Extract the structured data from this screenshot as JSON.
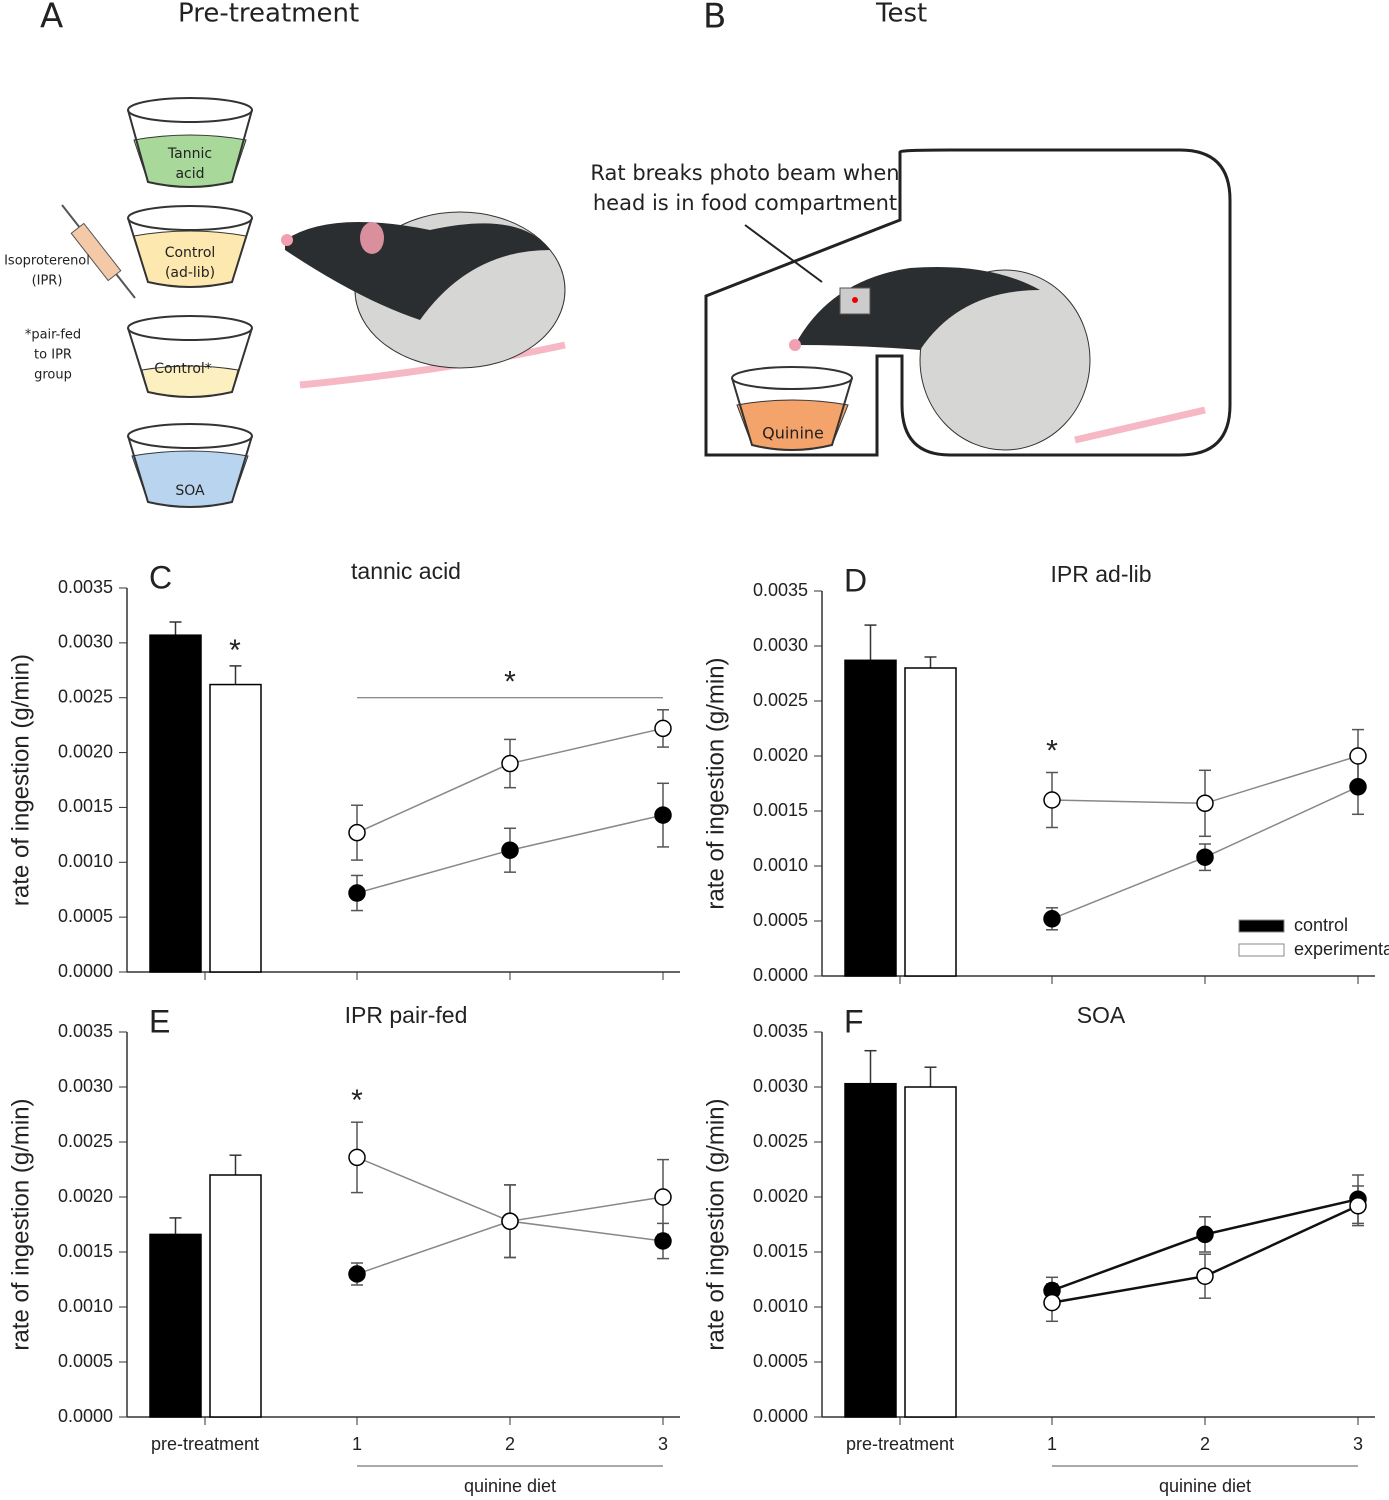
{
  "diagram": {
    "panel_a": {
      "letter": "A",
      "title": "Pre-treatment",
      "cups": [
        [
          "Tannic",
          "acid"
        ],
        [
          "Control",
          "(ad-lib)"
        ],
        [
          "Control*"
        ],
        [
          "SOA"
        ]
      ],
      "drug": [
        "Isoproterenol",
        "(IPR)"
      ],
      "note": [
        "*pair-fed",
        "to IPR",
        "group"
      ]
    },
    "panel_b": {
      "letter": "B",
      "title": "Test",
      "caption": [
        "Rat breaks photo beam when",
        "head is in food compartment"
      ],
      "cup": "Quinine"
    }
  },
  "chart_data": [
    {
      "type": "bar_line",
      "panel": "C",
      "title": "tannic acid",
      "ylabel": "rate of ingestion (g/min)",
      "ylim": [
        0,
        0.0035
      ],
      "yticks": [
        {
          "value": 0,
          "label": "0.0000"
        },
        {
          "value": 0.0005,
          "label": "0.0005"
        },
        {
          "value": 0.001,
          "label": "0.0010"
        },
        {
          "value": 0.0015,
          "label": "0.0015"
        },
        {
          "value": 0.002,
          "label": "0.0020"
        },
        {
          "value": 0.0025,
          "label": "0.0025"
        },
        {
          "value": 0.003,
          "label": "0.0030"
        },
        {
          "value": 0.0035,
          "label": "0.0035"
        }
      ],
      "x": [
        1,
        2,
        3
      ],
      "show_x_labels": false,
      "series": [
        {
          "color": "#000000",
          "bar": 0.00307,
          "bar_error": 0.00012,
          "values": [
            0.00072,
            0.00111,
            0.00143
          ],
          "errors": [
            0.00016,
            0.0002,
            0.00029
          ]
        },
        {
          "color": "#ffffff",
          "bar": 0.00262,
          "bar_error": 0.00017,
          "values": [
            0.00127,
            0.0019,
            0.00222
          ],
          "errors": [
            0.00025,
            0.00022,
            0.00017
          ]
        }
      ],
      "bar_annotation": "*",
      "bracket_annotation": "*"
    },
    {
      "type": "bar_line",
      "panel": "D",
      "title": "IPR ad-lib",
      "ylabel": "rate of ingestion (g/min)",
      "ylim": [
        0,
        0.0035
      ],
      "yticks": [
        {
          "value": 0,
          "label": "0.0000"
        },
        {
          "value": 0.0005,
          "label": "0.0005"
        },
        {
          "value": 0.001,
          "label": "0.0010"
        },
        {
          "value": 0.0015,
          "label": "0.0015"
        },
        {
          "value": 0.002,
          "label": "0.0020"
        },
        {
          "value": 0.0025,
          "label": "0.0025"
        },
        {
          "value": 0.003,
          "label": "0.0030"
        },
        {
          "value": 0.0035,
          "label": "0.0035"
        }
      ],
      "x": [
        1,
        2,
        3
      ],
      "show_x_labels": false,
      "legend": "lower right",
      "series": [
        {
          "name": "control",
          "color": "#000000",
          "bar": 0.00287,
          "bar_error": 0.00032,
          "values": [
            0.00052,
            0.00108,
            0.00172
          ],
          "errors": [
            0.0001,
            0.00012,
            0.00025
          ]
        },
        {
          "name": "experimental",
          "color": "#ffffff",
          "bar": 0.0028,
          "bar_error": 0.0001,
          "values": [
            0.0016,
            0.00157,
            0.002
          ],
          "errors": [
            0.00025,
            0.0003,
            0.00024
          ]
        }
      ],
      "point_annotation": {
        "text": "*",
        "x": 1
      }
    },
    {
      "type": "bar_line",
      "panel": "E",
      "title": "IPR pair-fed",
      "ylabel": "rate of ingestion (g/min)",
      "ylim": [
        0,
        0.0035
      ],
      "yticks": [
        {
          "value": 0,
          "label": "0.0000"
        },
        {
          "value": 0.0005,
          "label": "0.0005"
        },
        {
          "value": 0.001,
          "label": "0.0010"
        },
        {
          "value": 0.0015,
          "label": "0.0015"
        },
        {
          "value": 0.002,
          "label": "0.0020"
        },
        {
          "value": 0.0025,
          "label": "0.0025"
        },
        {
          "value": 0.003,
          "label": "0.0030"
        },
        {
          "value": 0.0035,
          "label": "0.0035"
        }
      ],
      "x": [
        1,
        2,
        3
      ],
      "show_x_labels": true,
      "group_label": "pre-treatment",
      "x_label": "quinine diet",
      "series": [
        {
          "color": "#000000",
          "bar": 0.00166,
          "bar_error": 0.00015,
          "values": [
            0.0013,
            0.00178,
            0.0016
          ],
          "errors": [
            0.0001,
            0.00033,
            0.00016
          ]
        },
        {
          "color": "#ffffff",
          "bar": 0.0022,
          "bar_error": 0.00018,
          "values": [
            0.00236,
            0.00178,
            0.002
          ],
          "errors": [
            0.00032,
            0.00033,
            0.00034
          ]
        }
      ],
      "point_annotation": {
        "text": "*",
        "x": 1
      }
    },
    {
      "type": "bar_line",
      "panel": "F",
      "title": "SOA",
      "ylabel": "rate of ingestion (g/min)",
      "ylim": [
        0,
        0.0035
      ],
      "yticks": [
        {
          "value": 0,
          "label": "0.0000"
        },
        {
          "value": 0.0005,
          "label": "0.0005"
        },
        {
          "value": 0.001,
          "label": "0.0010"
        },
        {
          "value": 0.0015,
          "label": "0.0015"
        },
        {
          "value": 0.002,
          "label": "0.0020"
        },
        {
          "value": 0.0025,
          "label": "0.0025"
        },
        {
          "value": 0.003,
          "label": "0.0030"
        },
        {
          "value": 0.0035,
          "label": "0.0035"
        }
      ],
      "x": [
        1,
        2,
        3
      ],
      "show_x_labels": true,
      "group_label": "pre-treatment",
      "x_label": "quinine diet",
      "series": [
        {
          "color": "#000000",
          "bar": 0.00303,
          "bar_error": 0.0003,
          "values": [
            0.00115,
            0.00166,
            0.00198
          ],
          "errors": [
            0.00012,
            0.00016,
            0.00022
          ]
        },
        {
          "color": "#ffffff",
          "bar": 0.003,
          "bar_error": 0.00018,
          "values": [
            0.00104,
            0.00128,
            0.00192
          ],
          "errors": [
            0.00017,
            0.0002,
            0.00018
          ]
        }
      ]
    }
  ]
}
